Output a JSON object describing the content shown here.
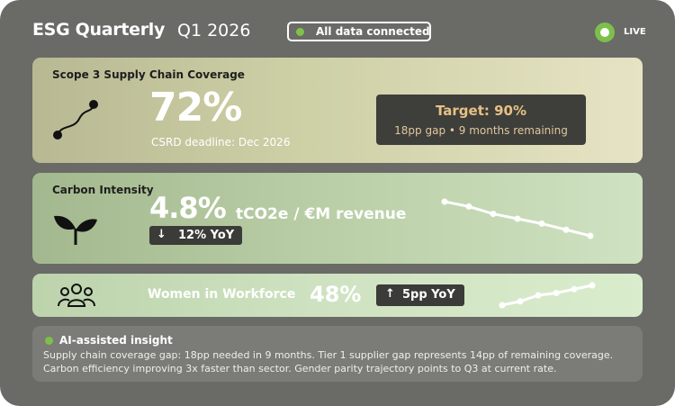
{
  "header": {
    "title": "ESG Quarterly",
    "period": "Q1 2026",
    "connection_status": "All data connected",
    "live_label": "LIVE"
  },
  "scope3": {
    "title": "Scope 3 Supply Chain Coverage",
    "value": "72%",
    "deadline": "CSRD deadline: Dec 2026",
    "target": "Target: 90%",
    "target_note": "18pp gap • 9 months remaining",
    "icon": "route-icon"
  },
  "carbon": {
    "title": "Carbon Intensity",
    "value": "4.8%",
    "unit": "tCO2e / €M revenue",
    "change_arrow": "↓",
    "change": "12% YoY",
    "icon": "sprout-icon",
    "trend": [
      6,
      5.6,
      5.0,
      4.6,
      4.2,
      3.7,
      3.2
    ]
  },
  "workforce": {
    "label": "Women in Workforce",
    "value": "48%",
    "change_arrow": "↑",
    "change": "5pp YoY",
    "icon": "people-icon",
    "trend": [
      1,
      1.5,
      2.3,
      2.6,
      3.1,
      3.6
    ]
  },
  "insight": {
    "title": "AI-assisted insight",
    "line1": "Supply chain coverage gap: 18pp needed in 9 months. Tier 1 supplier gap represents 14pp of remaining coverage.",
    "line2": "Carbon efficiency improving 3x faster than sector. Gender parity trajectory points to Q3 at current rate."
  },
  "colors": {
    "background": "#6a6a67",
    "accent_green": "#7cc04a",
    "target_text": "#e7c184",
    "chip_bg": "#3b3b38"
  }
}
